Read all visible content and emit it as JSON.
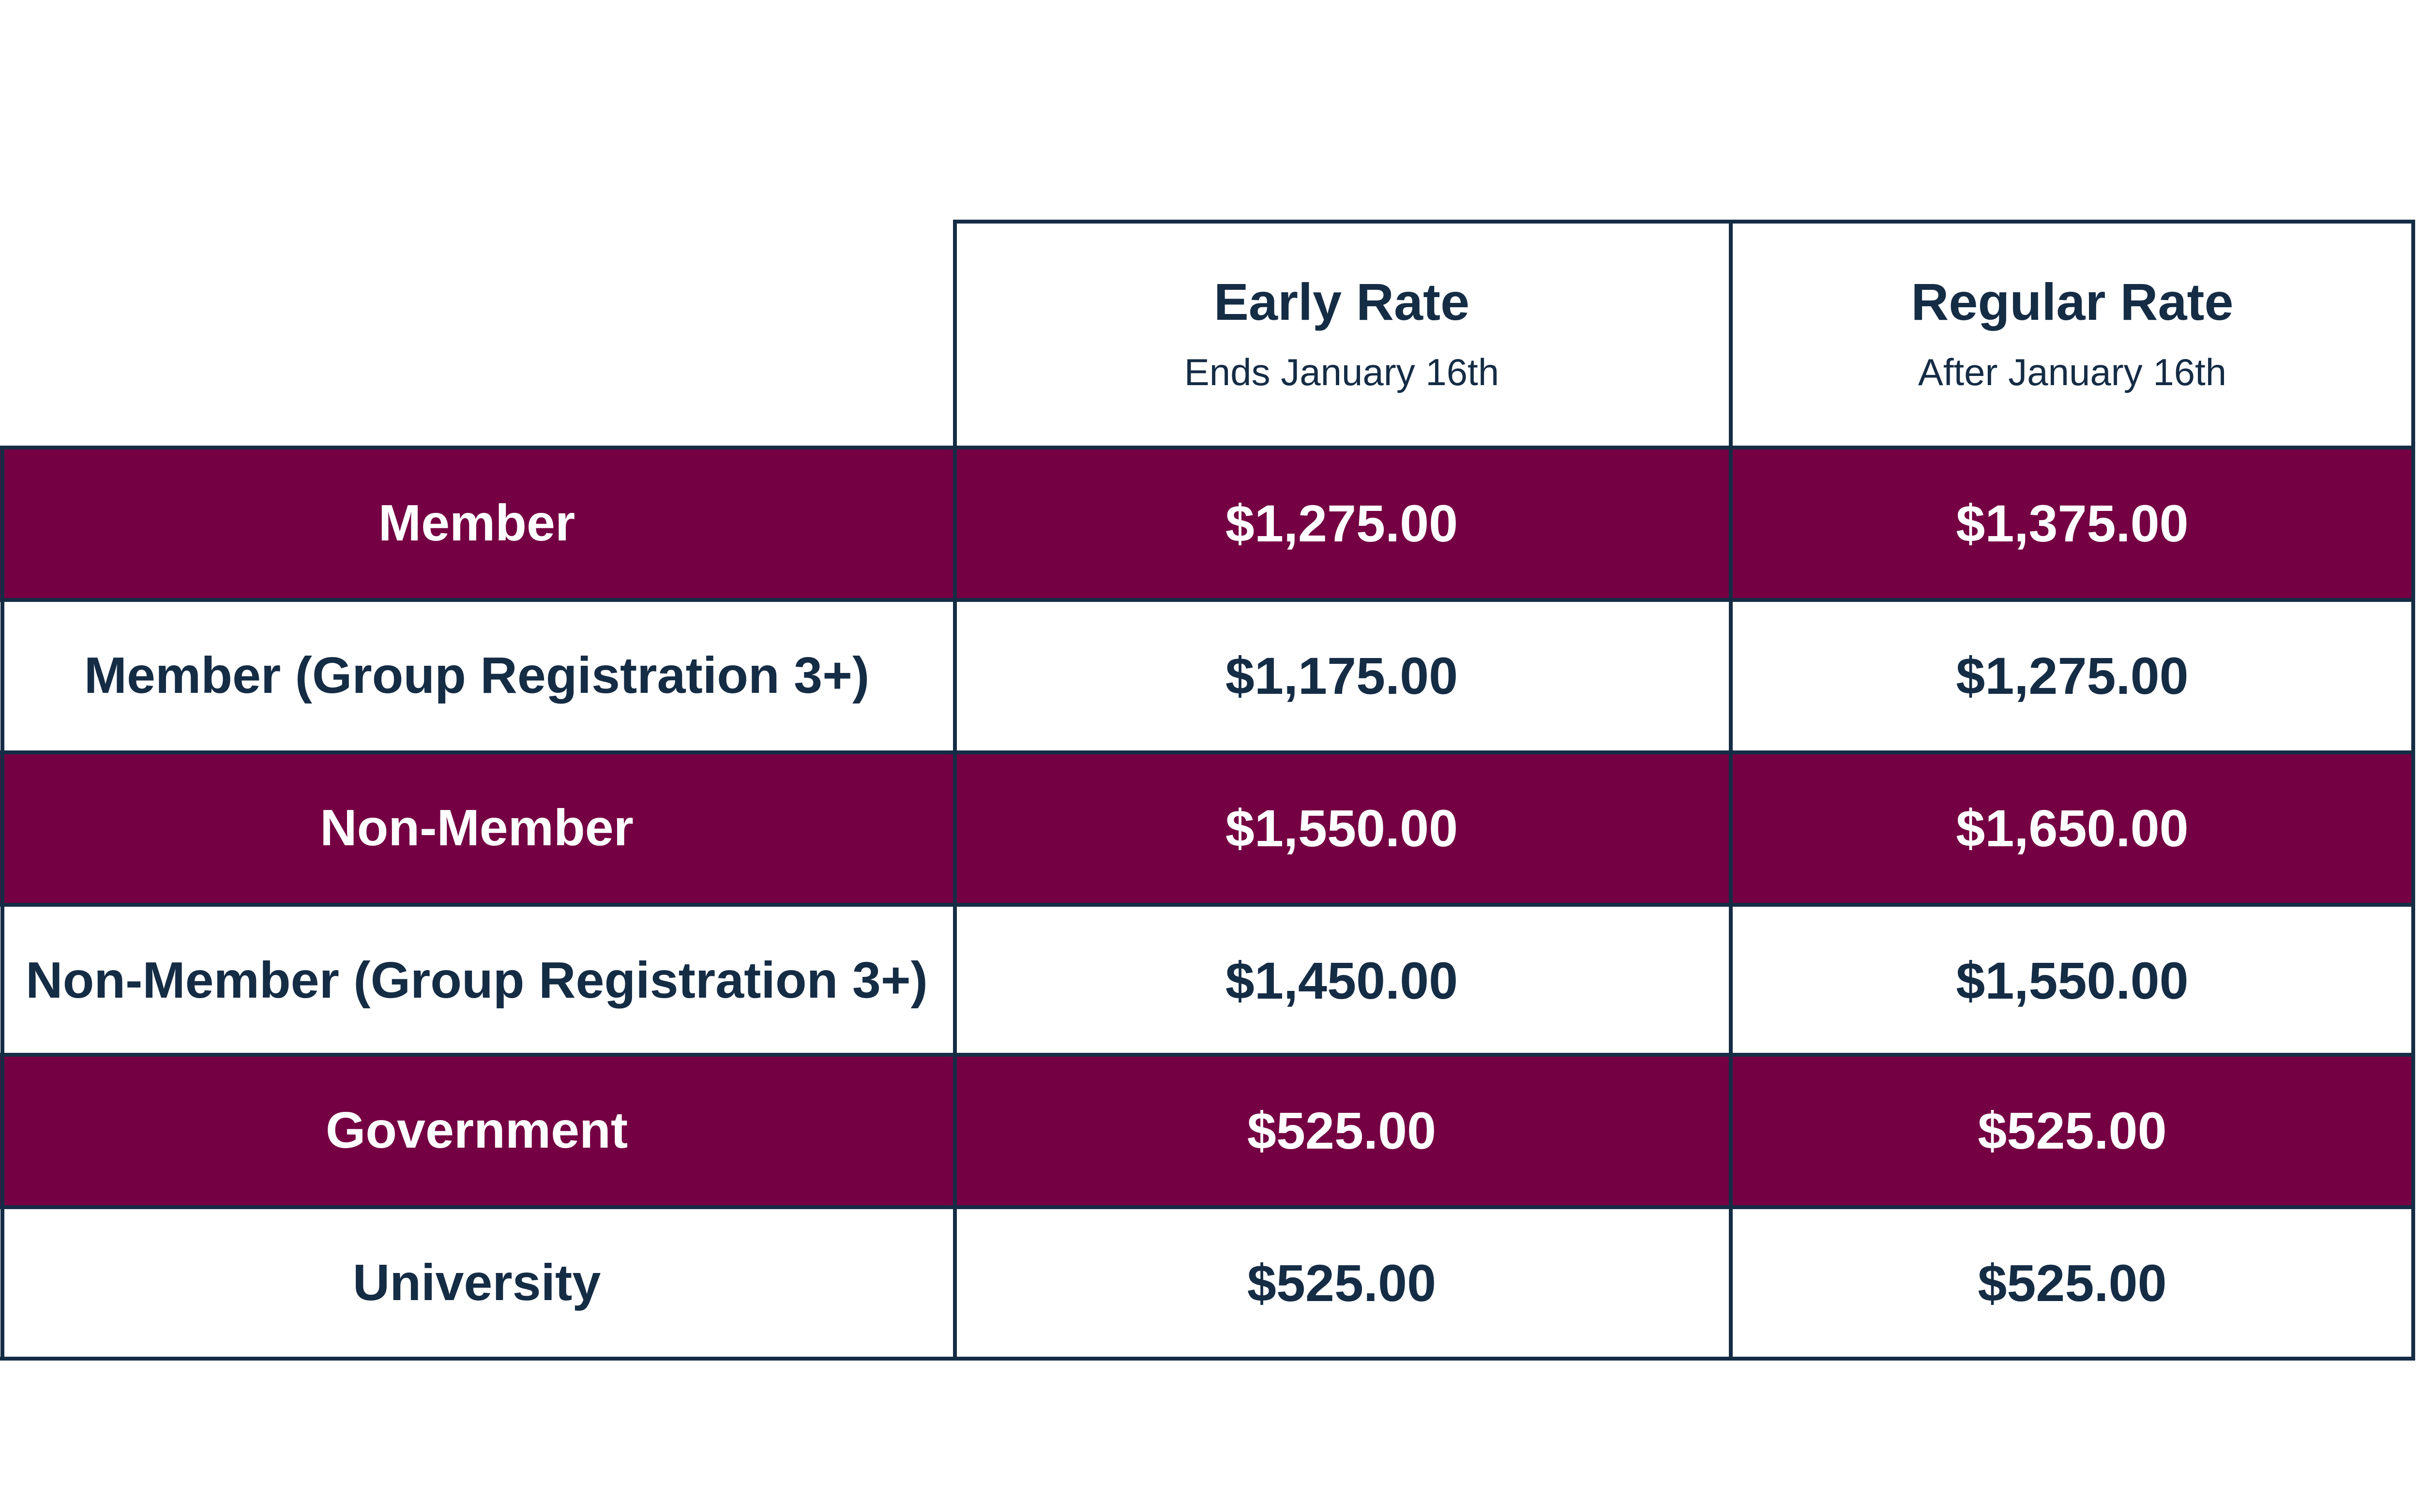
{
  "colors": {
    "accent": "#740043",
    "text": "#152c45",
    "border": "#152c45"
  },
  "columns": [
    {
      "title": "Early Rate",
      "subtitle": "Ends January 16th"
    },
    {
      "title": "Regular Rate",
      "subtitle": "After January 16th"
    }
  ],
  "rows": [
    {
      "label": "Member",
      "early": "$1,275.00",
      "regular": "$1,375.00",
      "style": "maroon"
    },
    {
      "label": "Member (Group Registration 3+)",
      "early": "$1,175.00",
      "regular": "$1,275.00",
      "style": "white"
    },
    {
      "label": "Non-Member",
      "early": "$1,550.00",
      "regular": "$1,650.00",
      "style": "maroon"
    },
    {
      "label": "Non-Member (Group Registration 3+)",
      "early": "$1,450.00",
      "regular": "$1,550.00",
      "style": "white"
    },
    {
      "label": "Government",
      "early": "$525.00",
      "regular": "$525.00",
      "style": "maroon"
    },
    {
      "label": "University",
      "early": "$525.00",
      "regular": "$525.00",
      "style": "white"
    }
  ]
}
